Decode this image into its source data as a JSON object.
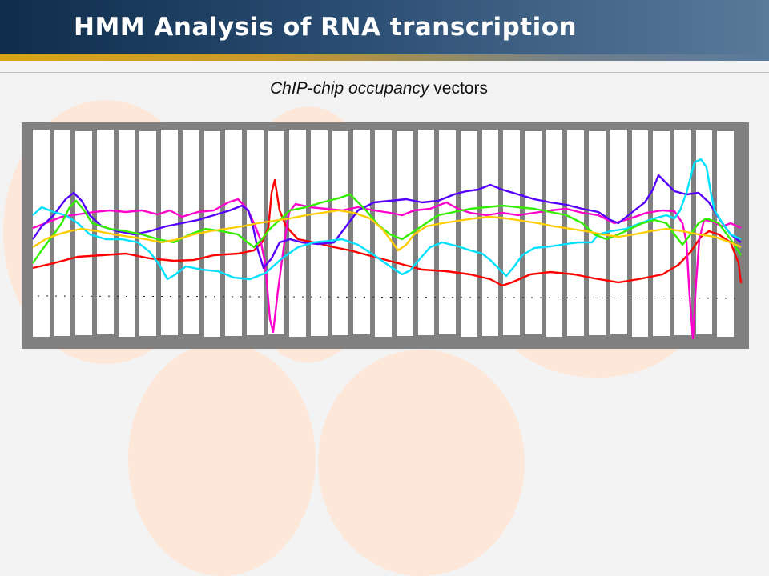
{
  "slide": {
    "title": "HMM Analysis of RNA transcription",
    "subtitle_italic_1": "ChIP-chip occupancy",
    "subtitle_plain": " vectors"
  },
  "colors": {
    "header_dark": "#0f2d4c",
    "header_light": "#5a7a9a",
    "accent_gold": "#d9a516",
    "bubble": "#fde7d8",
    "frame": "#808080",
    "traces": [
      "#ff0000",
      "#ff00cc",
      "#5500ff",
      "#00e0ff",
      "#33ee00",
      "#ffcc00"
    ]
  }
}
